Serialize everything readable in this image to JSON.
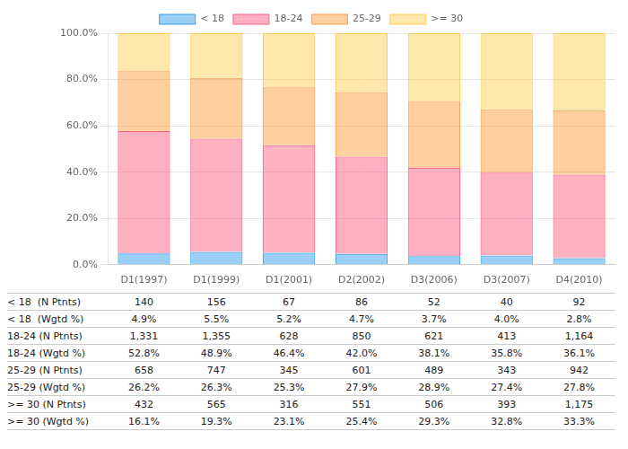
{
  "chart_data": {
    "type": "bar",
    "stacked": true,
    "categories": [
      "D1(1997)",
      "D1(1999)",
      "D1(2001)",
      "D2(2002)",
      "D3(2006)",
      "D3(2007)",
      "D4(2010)"
    ],
    "series": [
      {
        "name": "< 18",
        "values": [
          4.9,
          5.5,
          5.2,
          4.7,
          3.7,
          4.0,
          2.8
        ]
      },
      {
        "name": "18-24",
        "values": [
          52.8,
          48.9,
          46.4,
          42.0,
          38.1,
          35.8,
          36.1
        ]
      },
      {
        "name": "25-29",
        "values": [
          26.2,
          26.3,
          25.3,
          27.9,
          28.9,
          27.4,
          27.8
        ]
      },
      {
        "name": ">= 30",
        "values": [
          16.1,
          19.3,
          23.1,
          25.4,
          29.3,
          32.8,
          33.3
        ]
      }
    ],
    "ylim": [
      0,
      100
    ],
    "yticks": [
      {
        "value": 0,
        "label": "0.0%"
      },
      {
        "value": 20,
        "label": "20.0%"
      },
      {
        "value": 40,
        "label": "40.0%"
      },
      {
        "value": 60,
        "label": "60.0%"
      },
      {
        "value": 80,
        "label": "80.0%"
      },
      {
        "value": 100,
        "label": "100.0%"
      }
    ],
    "grid": true,
    "legend": "top",
    "table_rows": [
      [
        "< 18  (N Ptnts)",
        "140",
        "156",
        "67",
        "86",
        "52",
        "40",
        "92"
      ],
      [
        "< 18  (Wgtd %)",
        "4.9%",
        "5.5%",
        "5.2%",
        "4.7%",
        "3.7%",
        "4.0%",
        "2.8%"
      ],
      [
        "18-24 (N Ptnts)",
        "1,331",
        "1,355",
        "628",
        "850",
        "621",
        "413",
        "1,164"
      ],
      [
        "18-24 (Wgtd %)",
        "52.8%",
        "48.9%",
        "46.4%",
        "42.0%",
        "38.1%",
        "35.8%",
        "36.1%"
      ],
      [
        "25-29 (N Ptnts)",
        "658",
        "747",
        "345",
        "601",
        "489",
        "343",
        "942"
      ],
      [
        "25-29 (Wgtd %)",
        "26.2%",
        "26.3%",
        "25.3%",
        "27.9%",
        "28.9%",
        "27.4%",
        "27.8%"
      ],
      [
        ">= 30 (N Ptnts)",
        "432",
        "565",
        "316",
        "551",
        "506",
        "393",
        "1,175"
      ],
      [
        ">= 30 (Wgtd %)",
        "16.1%",
        "19.3%",
        "23.1%",
        "25.4%",
        "29.3%",
        "32.8%",
        "33.3%"
      ]
    ]
  }
}
